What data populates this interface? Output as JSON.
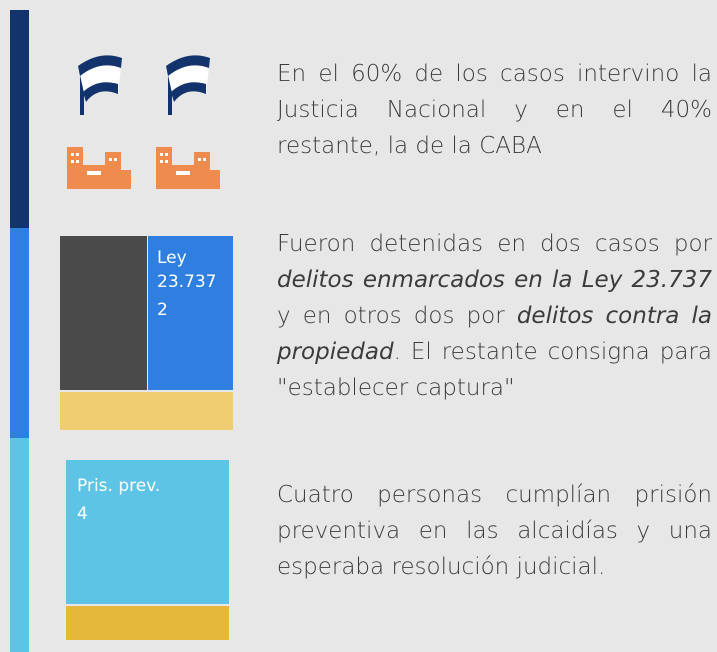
{
  "row1": {
    "text": "En el 60% de los casos intervino la Justicia Nacional y en el 40% restante, la de la CABA"
  },
  "row2": {
    "box_label": "Ley 23.737",
    "box_value": "2",
    "segments": [
      {
        "text": "Fueron detenidas en dos casos por ",
        "italic": false
      },
      {
        "text": "delitos enmarcados en la Ley 23.737",
        "italic": true
      },
      {
        "text": " y en otros dos por ",
        "italic": false
      },
      {
        "text": "delitos contra la propiedad",
        "italic": true
      },
      {
        "text": ". El restante consigna para \"establecer captura\"",
        "italic": false
      }
    ]
  },
  "row3": {
    "box_label": "Pris. prev.",
    "box_value": "4",
    "text": "Cuatro personas cumplían prisión preventiva en las alcaidías y una esperaba resolución judicial."
  }
}
